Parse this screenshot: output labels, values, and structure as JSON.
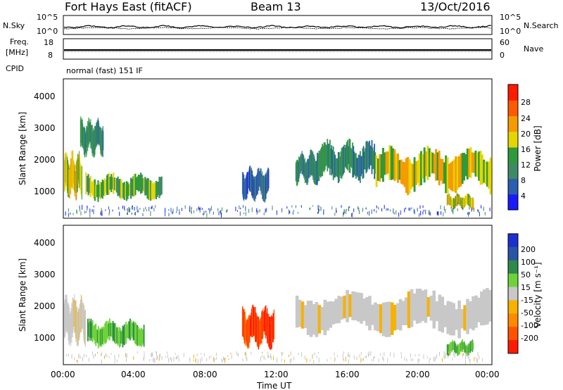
{
  "header": {
    "station": "Fort Hays East (fitACF)",
    "beam": "Beam 13",
    "date": "13/Oct/2016"
  },
  "noise_panel": {
    "left_label": "N.Sky",
    "left_ticks": [
      "10^5",
      "10^0"
    ],
    "right_label": "N.Search",
    "right_ticks": [
      "10^5",
      "10^0"
    ]
  },
  "freq_panel": {
    "left_label_line1": "Freq.",
    "left_label_line2": "[MHz]",
    "left_ticks": [
      "18",
      "8"
    ],
    "right_label": "Nave",
    "right_ticks": [
      "60",
      "0"
    ],
    "cpid_label": "CPID",
    "mode_text": "normal (fast) 151 IF"
  },
  "colors": {
    "power_scale": [
      "#1a1aff",
      "#2b5db0",
      "#3f8a66",
      "#2f9a3a",
      "#e6d600",
      "#f59b00",
      "#ff5a00",
      "#ff1a00"
    ],
    "velocity_scale": [
      "#1e2fd1",
      "#2a55a6",
      "#2d8a4a",
      "#6fd338",
      "#c8c8c8",
      "#f7b100",
      "#ff8a00",
      "#ff5300",
      "#ff1a00"
    ],
    "ground_scatter": "#c8c8c8"
  },
  "chart_data": [
    {
      "type": "heatmap",
      "name": "Power",
      "ylabel": "Slant Range [km]",
      "yticks": [
        "1000",
        "2000",
        "3000",
        "4000"
      ],
      "ylim": [
        200,
        4500
      ],
      "colorbar_label": "Power [dB]",
      "colorbar_ticks": [
        "4",
        "8",
        "12",
        "16",
        "20",
        "24",
        "28"
      ],
      "regions": [
        {
          "t0": 0.0,
          "t1": 1.0,
          "r0": 900,
          "r1": 2100,
          "level": 20
        },
        {
          "t0": 0.9,
          "t1": 2.2,
          "r0": 2200,
          "r1": 3200,
          "level": 12
        },
        {
          "t0": 1.2,
          "t1": 5.5,
          "r0": 800,
          "r1": 1500,
          "level": 16
        },
        {
          "t0": 10.0,
          "t1": 11.5,
          "r0": 800,
          "r1": 1700,
          "level": 8
        },
        {
          "t0": 13.0,
          "t1": 14.5,
          "r0": 1300,
          "r1": 2200,
          "level": 12
        },
        {
          "t0": 14.2,
          "t1": 17.5,
          "r0": 1400,
          "r1": 2500,
          "level": 12
        },
        {
          "t0": 17.5,
          "t1": 24.0,
          "r0": 1100,
          "r1": 2300,
          "level": 20
        },
        {
          "t0": 21.5,
          "t1": 23.0,
          "r0": 500,
          "r1": 900,
          "level": 20
        }
      ]
    },
    {
      "type": "heatmap",
      "name": "Velocity",
      "ylabel": "Slant Range [km]",
      "yticks": [
        "1000",
        "2000",
        "3000",
        "4000"
      ],
      "ylim": [
        200,
        4500
      ],
      "colorbar_label": "Velocity [m s⁻¹]",
      "colorbar_ticks": [
        "200",
        "100",
        "50",
        "15",
        "-15",
        "-50",
        "-100",
        "-200"
      ],
      "regions": [
        {
          "t0": 0.0,
          "t1": 1.2,
          "r0": 900,
          "r1": 2200,
          "kind": "ground"
        },
        {
          "t0": 1.3,
          "t1": 4.5,
          "r0": 800,
          "r1": 1500,
          "kind": "positive"
        },
        {
          "t0": 10.0,
          "t1": 11.8,
          "r0": 800,
          "r1": 1900,
          "kind": "negative"
        },
        {
          "t0": 13.0,
          "t1": 24.0,
          "r0": 1200,
          "r1": 2400,
          "kind": "ground"
        },
        {
          "t0": 21.5,
          "t1": 23.0,
          "r0": 500,
          "r1": 900,
          "kind": "positive"
        }
      ]
    }
  ],
  "x_axis": {
    "ticks": [
      "00:00",
      "04:00",
      "08:00",
      "12:00",
      "16:00",
      "20:00",
      "00:00"
    ],
    "label": "Time UT"
  }
}
